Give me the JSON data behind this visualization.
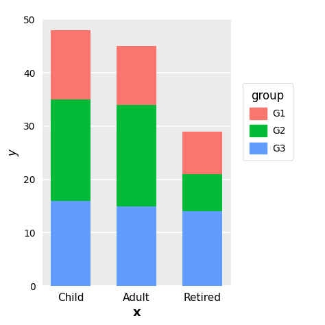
{
  "categories": [
    "Child",
    "Adult",
    "Retired"
  ],
  "G3": [
    16,
    15,
    14
  ],
  "G2": [
    19,
    19,
    7
  ],
  "G1": [
    13,
    11,
    8
  ],
  "colors": {
    "G1": "#F8766D",
    "G2": "#00BA38",
    "G3": "#619CFF"
  },
  "ylabel": "y",
  "xlabel": "x",
  "ylim": [
    0,
    50
  ],
  "yticks": [
    0,
    10,
    20,
    30,
    40,
    50
  ],
  "legend_title": "group",
  "plot_bg_color": "#EBEBEB",
  "fig_bg_color": "#FFFFFF",
  "grid_color": "#FFFFFF",
  "bar_width": 0.6
}
